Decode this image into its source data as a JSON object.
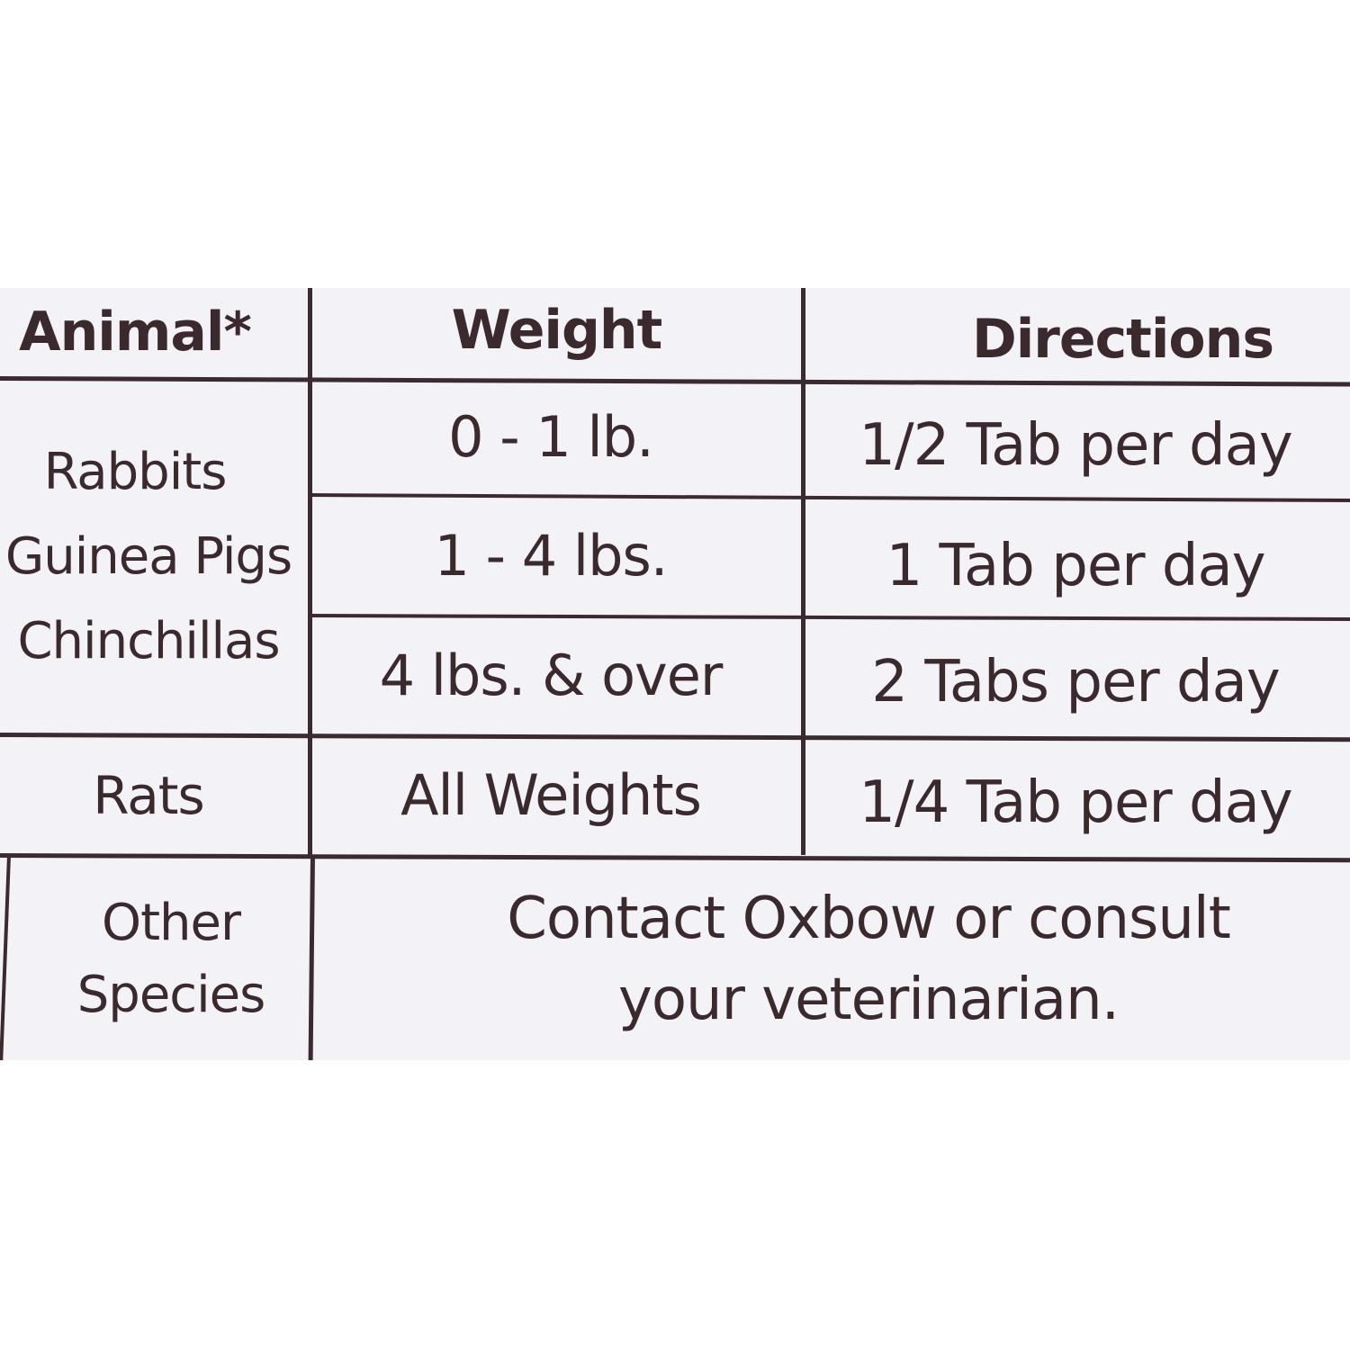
{
  "table": {
    "headers": {
      "animal": "Animal*",
      "weight": "Weight",
      "directions": "Directions"
    },
    "group_small_animals": {
      "animals": [
        "Rabbits",
        "Guinea Pigs",
        "Chinchillas"
      ],
      "rows": [
        {
          "weight": "0 - 1 lb.",
          "directions": "1/2 Tab per day"
        },
        {
          "weight": "1 - 4 lbs.",
          "directions": "1 Tab per day"
        },
        {
          "weight": "4 lbs. & over",
          "directions": "2 Tabs per day"
        }
      ]
    },
    "rats": {
      "animal": "Rats",
      "weight": "All Weights",
      "directions": "1/4 Tab per day"
    },
    "other": {
      "animal_line1": "Other",
      "animal_line2": "Species",
      "note_line1": "Contact Oxbow or consult",
      "note_line2": "your veterinarian."
    }
  },
  "colors": {
    "label_background": "#f3f2f7",
    "page_background": "#ffffff",
    "ink": "#3a2a2e"
  }
}
